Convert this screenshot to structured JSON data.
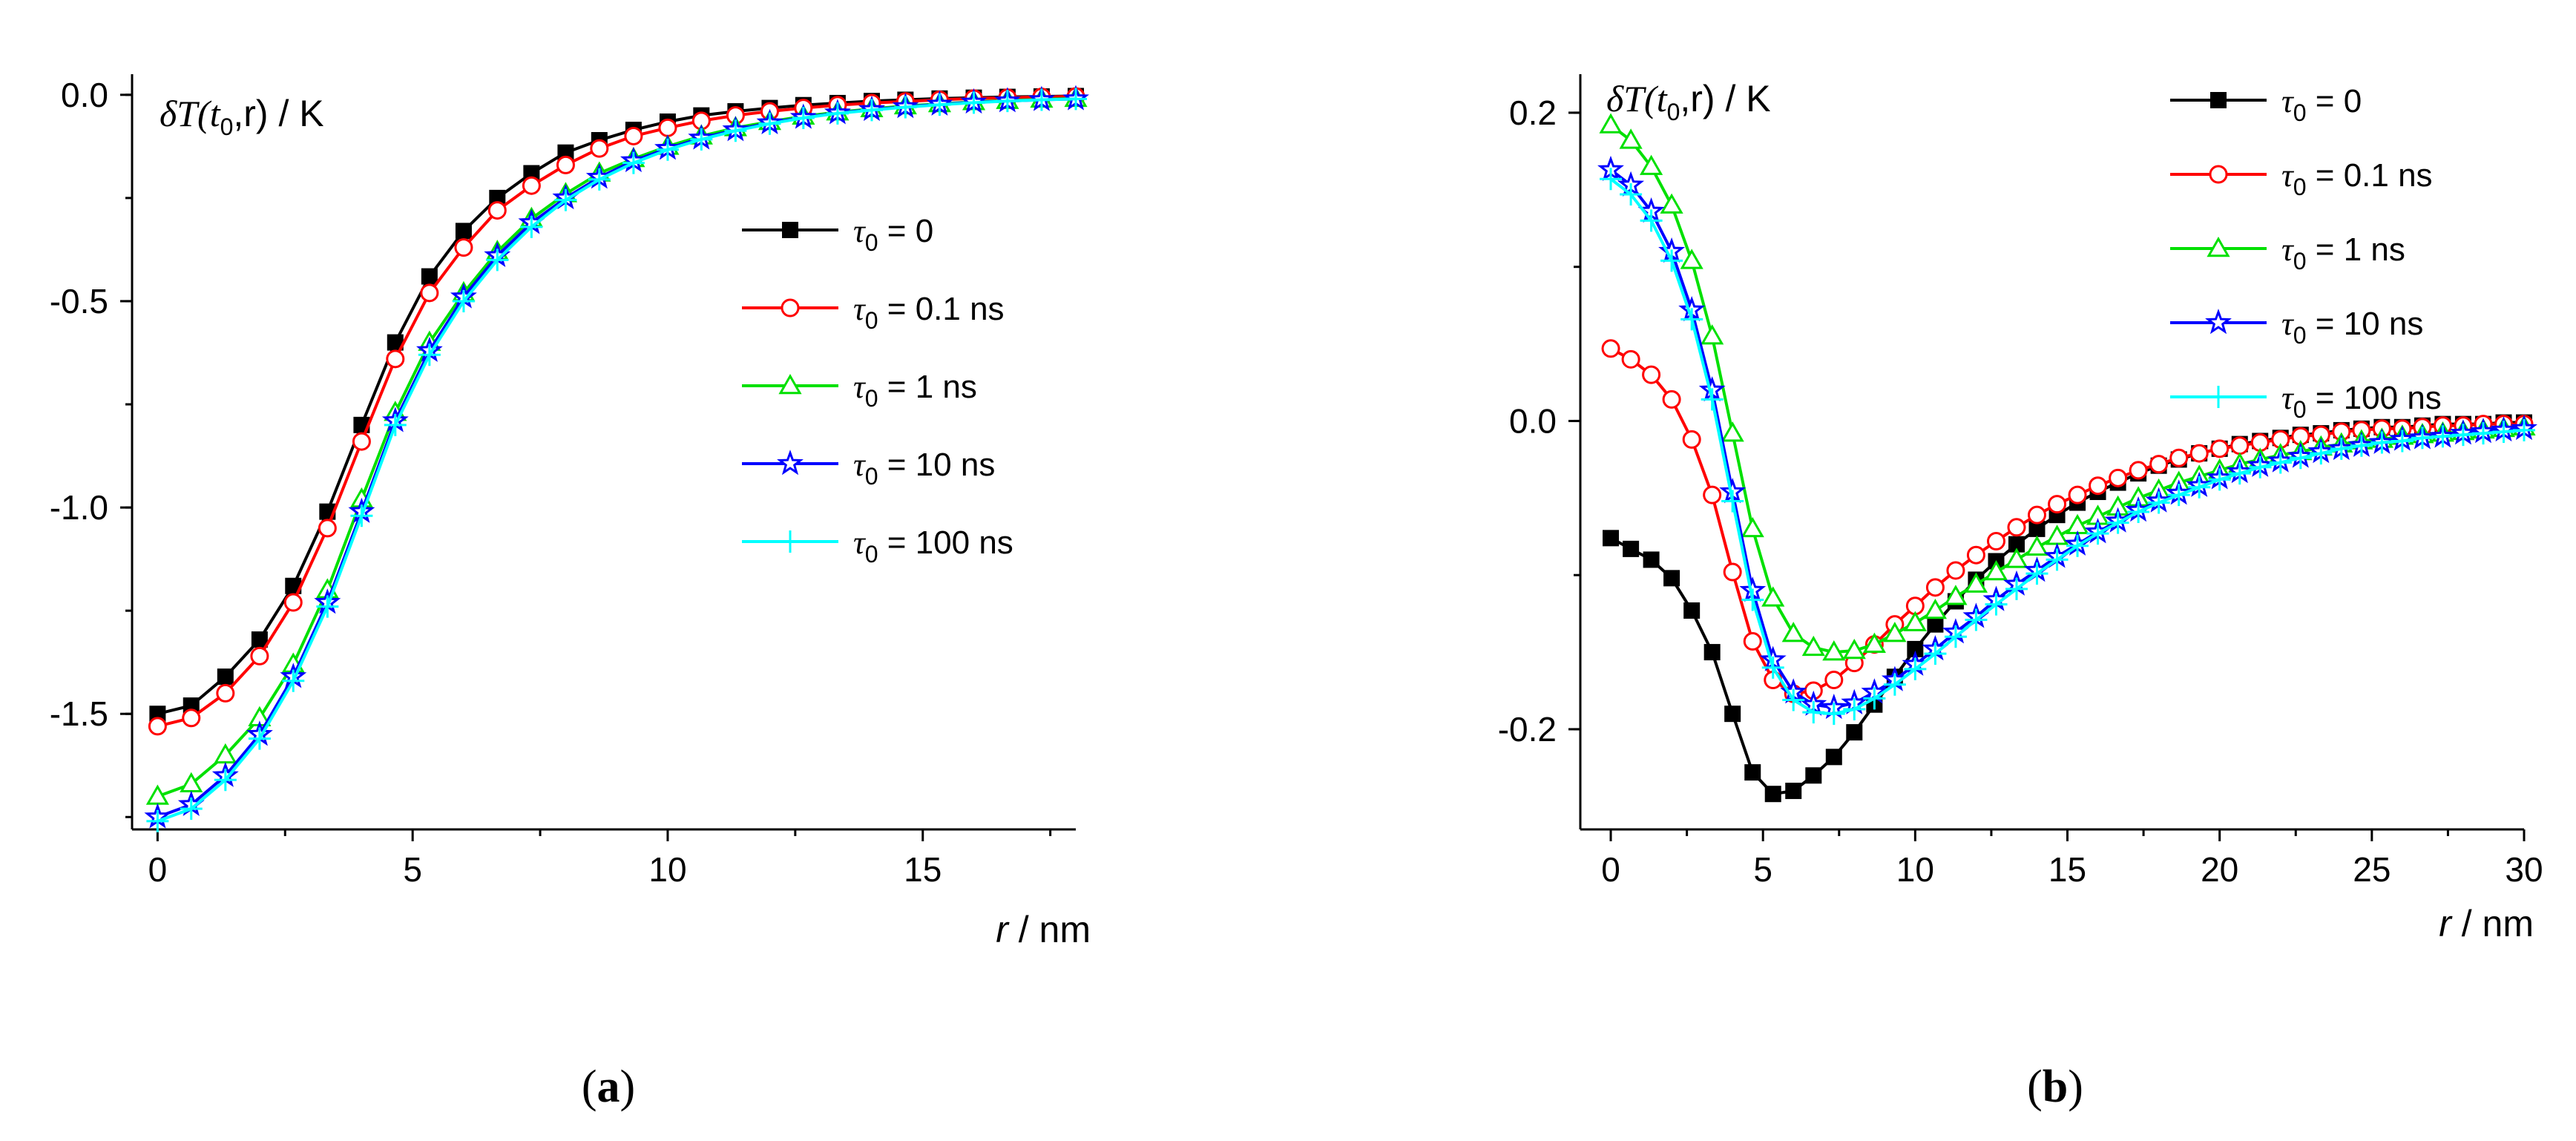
{
  "chart_data": [
    {
      "type": "line",
      "panel_label": "(a)",
      "ylabel": "δT(t0,r) / K",
      "ylabel_parts": {
        "main": "δT(t",
        "sub": "0",
        "rest": ",r) / K"
      },
      "xlabel": "r / nm",
      "xlabel_parts": {
        "italic": "r",
        "rest": " / nm"
      },
      "xlim": [
        -0.5,
        18
      ],
      "ylim": [
        -1.78,
        0.05
      ],
      "xticks": [
        0,
        5,
        10,
        15
      ],
      "xtick_labels": [
        "0",
        "5",
        "10",
        "15"
      ],
      "yticks": [
        0.0,
        -0.5,
        -1.0,
        -1.5
      ],
      "ytick_labels": [
        "0.0",
        "-0.5",
        "-1.0",
        "-1.5"
      ],
      "grid": false,
      "legend_position": "middle-right",
      "series": [
        {
          "name": "τ0 = 0",
          "legend_sym": "τ",
          "legend_sub": "0",
          "legend_rest": " = 0",
          "color": "#000000",
          "marker": "square-filled",
          "x": [
            0,
            0.66,
            1.33,
            2,
            2.66,
            3.33,
            4,
            4.66,
            5.33,
            6,
            6.66,
            7.33,
            8,
            8.66,
            9.33,
            10,
            10.66,
            11.33,
            12,
            12.66,
            13.33,
            14,
            14.66,
            15.33,
            16,
            16.66,
            17.33,
            18
          ],
          "y": [
            -1.5,
            -1.48,
            -1.41,
            -1.32,
            -1.19,
            -1.01,
            -0.8,
            -0.6,
            -0.44,
            -0.33,
            -0.25,
            -0.19,
            -0.14,
            -0.11,
            -0.085,
            -0.065,
            -0.05,
            -0.04,
            -0.032,
            -0.025,
            -0.02,
            -0.015,
            -0.012,
            -0.009,
            -0.007,
            -0.005,
            -0.004,
            -0.003
          ]
        },
        {
          "name": "τ0 = 0.1 ns",
          "legend_sym": "τ",
          "legend_sub": "0",
          "legend_rest": " = 0.1 ns",
          "color": "#ff0000",
          "marker": "circle-open",
          "x": [
            0,
            0.66,
            1.33,
            2,
            2.66,
            3.33,
            4,
            4.66,
            5.33,
            6,
            6.66,
            7.33,
            8,
            8.66,
            9.33,
            10,
            10.66,
            11.33,
            12,
            12.66,
            13.33,
            14,
            14.66,
            15.33,
            16,
            16.66,
            17.33,
            18
          ],
          "y": [
            -1.53,
            -1.51,
            -1.45,
            -1.36,
            -1.23,
            -1.05,
            -0.84,
            -0.64,
            -0.48,
            -0.37,
            -0.28,
            -0.22,
            -0.17,
            -0.13,
            -0.1,
            -0.08,
            -0.063,
            -0.05,
            -0.04,
            -0.032,
            -0.025,
            -0.02,
            -0.016,
            -0.012,
            -0.009,
            -0.007,
            -0.005,
            -0.004
          ]
        },
        {
          "name": "τ0 = 1 ns",
          "legend_sym": "τ",
          "legend_sub": "0",
          "legend_rest": " = 1 ns",
          "color": "#00e000",
          "marker": "triangle-open",
          "x": [
            0,
            0.66,
            1.33,
            2,
            2.66,
            3.33,
            4,
            4.66,
            5.33,
            6,
            6.66,
            7.33,
            8,
            8.66,
            9.33,
            10,
            10.66,
            11.33,
            12,
            12.66,
            13.33,
            14,
            14.66,
            15.33,
            16,
            16.66,
            17.33,
            18
          ],
          "y": [
            -1.7,
            -1.67,
            -1.6,
            -1.51,
            -1.38,
            -1.2,
            -0.98,
            -0.77,
            -0.6,
            -0.48,
            -0.38,
            -0.3,
            -0.24,
            -0.19,
            -0.155,
            -0.125,
            -0.1,
            -0.08,
            -0.065,
            -0.052,
            -0.042,
            -0.034,
            -0.027,
            -0.022,
            -0.017,
            -0.014,
            -0.011,
            -0.009
          ]
        },
        {
          "name": "τ0 = 10 ns",
          "legend_sym": "τ",
          "legend_sub": "0",
          "legend_rest": " = 10 ns",
          "color": "#0000ff",
          "marker": "star-open",
          "x": [
            0,
            0.66,
            1.33,
            2,
            2.66,
            3.33,
            4,
            4.66,
            5.33,
            6,
            6.66,
            7.33,
            8,
            8.66,
            9.33,
            10,
            10.66,
            11.33,
            12,
            12.66,
            13.33,
            14,
            14.66,
            15.33,
            16,
            16.66,
            17.33,
            18
          ],
          "y": [
            -1.75,
            -1.72,
            -1.65,
            -1.55,
            -1.41,
            -1.23,
            -1.01,
            -0.79,
            -0.62,
            -0.49,
            -0.39,
            -0.31,
            -0.25,
            -0.2,
            -0.16,
            -0.13,
            -0.105,
            -0.085,
            -0.068,
            -0.055,
            -0.044,
            -0.036,
            -0.029,
            -0.023,
            -0.018,
            -0.015,
            -0.012,
            -0.01
          ]
        },
        {
          "name": "τ0 = 100 ns",
          "legend_sym": "τ",
          "legend_sub": "0",
          "legend_rest": " = 100 ns",
          "color": "#00ffff",
          "marker": "plus",
          "x": [
            0,
            0.66,
            1.33,
            2,
            2.66,
            3.33,
            4,
            4.66,
            5.33,
            6,
            6.66,
            7.33,
            8,
            8.66,
            9.33,
            10,
            10.66,
            11.33,
            12,
            12.66,
            13.33,
            14,
            14.66,
            15.33,
            16,
            16.66,
            17.33,
            18
          ],
          "y": [
            -1.76,
            -1.73,
            -1.66,
            -1.56,
            -1.42,
            -1.24,
            -1.02,
            -0.8,
            -0.63,
            -0.5,
            -0.4,
            -0.32,
            -0.255,
            -0.205,
            -0.165,
            -0.133,
            -0.108,
            -0.087,
            -0.07,
            -0.056,
            -0.045,
            -0.037,
            -0.03,
            -0.024,
            -0.019,
            -0.015,
            -0.012,
            -0.01
          ]
        }
      ]
    },
    {
      "type": "line",
      "panel_label": "(b)",
      "ylabel": "δT(t0,r) / K",
      "ylabel_parts": {
        "main": "δT(t",
        "sub": "0",
        "rest": ",r) / K"
      },
      "xlabel": "r / nm",
      "xlabel_parts": {
        "italic": "r",
        "rest": " / nm"
      },
      "xlim": [
        -1,
        30
      ],
      "ylim": [
        -0.265,
        0.225
      ],
      "xticks": [
        0,
        5,
        10,
        15,
        20,
        25,
        30
      ],
      "xtick_labels": [
        "0",
        "5",
        "10",
        "15",
        "20",
        "25",
        "30"
      ],
      "yticks": [
        0.2,
        0.0,
        -0.2
      ],
      "ytick_labels": [
        "0.2",
        "0.0",
        "-0.2"
      ],
      "grid": false,
      "legend_position": "top-right",
      "series": [
        {
          "name": "τ0 = 0",
          "legend_sym": "τ",
          "legend_sub": "0",
          "legend_rest": " = 0",
          "color": "#000000",
          "marker": "square-filled",
          "x": [
            0,
            0.66,
            1.33,
            2,
            2.66,
            3.33,
            4,
            4.66,
            5.33,
            6,
            6.66,
            7.33,
            8,
            8.66,
            9.33,
            10,
            10.66,
            11.33,
            12,
            12.66,
            13.33,
            14,
            14.66,
            15.33,
            16,
            16.66,
            17.33,
            18,
            18.66,
            19.33,
            20,
            20.66,
            21.33,
            22,
            22.66,
            23.33,
            24,
            24.66,
            25.33,
            26,
            26.66,
            27.33,
            28,
            28.66,
            29.33,
            30
          ],
          "y": [
            -0.076,
            -0.083,
            -0.09,
            -0.102,
            -0.123,
            -0.15,
            -0.19,
            -0.228,
            -0.242,
            -0.24,
            -0.23,
            -0.218,
            -0.202,
            -0.184,
            -0.166,
            -0.148,
            -0.132,
            -0.117,
            -0.103,
            -0.091,
            -0.08,
            -0.07,
            -0.061,
            -0.053,
            -0.046,
            -0.04,
            -0.034,
            -0.029,
            -0.025,
            -0.021,
            -0.018,
            -0.015,
            -0.013,
            -0.011,
            -0.009,
            -0.008,
            -0.006,
            -0.005,
            -0.004,
            -0.004,
            -0.003,
            -0.002,
            -0.002,
            -0.002,
            -0.001,
            -0.001
          ]
        },
        {
          "name": "τ0 = 0.1 ns",
          "legend_sym": "τ",
          "legend_sub": "0",
          "legend_rest": " = 0.1 ns",
          "color": "#ff0000",
          "marker": "circle-open",
          "x": [
            0,
            0.66,
            1.33,
            2,
            2.66,
            3.33,
            4,
            4.66,
            5.33,
            6,
            6.66,
            7.33,
            8,
            8.66,
            9.33,
            10,
            10.66,
            11.33,
            12,
            12.66,
            13.33,
            14,
            14.66,
            15.33,
            16,
            16.66,
            17.33,
            18,
            18.66,
            19.33,
            20,
            20.66,
            21.33,
            22,
            22.66,
            23.33,
            24,
            24.66,
            25.33,
            26,
            26.66,
            27.33,
            28,
            28.66,
            29.33,
            30
          ],
          "y": [
            0.047,
            0.04,
            0.03,
            0.014,
            -0.012,
            -0.048,
            -0.098,
            -0.143,
            -0.168,
            -0.177,
            -0.175,
            -0.168,
            -0.157,
            -0.145,
            -0.132,
            -0.12,
            -0.108,
            -0.097,
            -0.087,
            -0.078,
            -0.069,
            -0.061,
            -0.054,
            -0.048,
            -0.042,
            -0.037,
            -0.032,
            -0.028,
            -0.024,
            -0.021,
            -0.018,
            -0.016,
            -0.014,
            -0.012,
            -0.01,
            -0.009,
            -0.007,
            -0.006,
            -0.005,
            -0.005,
            -0.004,
            -0.003,
            -0.003,
            -0.002,
            -0.002,
            -0.002
          ]
        },
        {
          "name": "τ0 = 1 ns",
          "legend_sym": "τ",
          "legend_sub": "0",
          "legend_rest": " = 1 ns",
          "color": "#00e000",
          "marker": "triangle-open",
          "x": [
            0,
            0.66,
            1.33,
            2,
            2.66,
            3.33,
            4,
            4.66,
            5.33,
            6,
            6.66,
            7.33,
            8,
            8.66,
            9.33,
            10,
            10.66,
            11.33,
            12,
            12.66,
            13.33,
            14,
            14.66,
            15.33,
            16,
            16.66,
            17.33,
            18,
            18.66,
            19.33,
            20,
            20.66,
            21.33,
            22,
            22.66,
            23.33,
            24,
            24.66,
            25.33,
            26,
            26.66,
            27.33,
            28,
            28.66,
            29.33,
            30
          ],
          "y": [
            0.192,
            0.182,
            0.165,
            0.14,
            0.104,
            0.055,
            -0.008,
            -0.07,
            -0.115,
            -0.138,
            -0.147,
            -0.15,
            -0.149,
            -0.145,
            -0.138,
            -0.131,
            -0.123,
            -0.114,
            -0.106,
            -0.098,
            -0.09,
            -0.082,
            -0.075,
            -0.068,
            -0.062,
            -0.056,
            -0.05,
            -0.045,
            -0.04,
            -0.036,
            -0.032,
            -0.028,
            -0.025,
            -0.022,
            -0.02,
            -0.017,
            -0.015,
            -0.013,
            -0.012,
            -0.01,
            -0.009,
            -0.008,
            -0.007,
            -0.006,
            -0.005,
            -0.004
          ]
        },
        {
          "name": "τ0 = 10 ns",
          "legend_sym": "τ",
          "legend_sub": "0",
          "legend_rest": " = 10 ns",
          "color": "#0000ff",
          "marker": "star-open",
          "x": [
            0,
            0.66,
            1.33,
            2,
            2.66,
            3.33,
            4,
            4.66,
            5.33,
            6,
            6.66,
            7.33,
            8,
            8.66,
            9.33,
            10,
            10.66,
            11.33,
            12,
            12.66,
            13.33,
            14,
            14.66,
            15.33,
            16,
            16.66,
            17.33,
            18,
            18.66,
            19.33,
            20,
            20.66,
            21.33,
            22,
            22.66,
            23.33,
            24,
            24.66,
            25.33,
            26,
            26.66,
            27.33,
            28,
            28.66,
            29.33,
            30
          ],
          "y": [
            0.163,
            0.153,
            0.136,
            0.11,
            0.072,
            0.02,
            -0.046,
            -0.11,
            -0.155,
            -0.176,
            -0.184,
            -0.186,
            -0.183,
            -0.176,
            -0.168,
            -0.158,
            -0.148,
            -0.137,
            -0.127,
            -0.116,
            -0.106,
            -0.097,
            -0.088,
            -0.08,
            -0.072,
            -0.065,
            -0.058,
            -0.052,
            -0.047,
            -0.042,
            -0.037,
            -0.033,
            -0.029,
            -0.026,
            -0.023,
            -0.02,
            -0.018,
            -0.016,
            -0.014,
            -0.012,
            -0.011,
            -0.01,
            -0.008,
            -0.007,
            -0.006,
            -0.005
          ]
        },
        {
          "name": "τ0 = 100 ns",
          "legend_sym": "τ",
          "legend_sub": "0",
          "legend_rest": " = 100 ns",
          "color": "#00ffff",
          "marker": "plus",
          "x": [
            0,
            0.66,
            1.33,
            2,
            2.66,
            3.33,
            4,
            4.66,
            5.33,
            6,
            6.66,
            7.33,
            8,
            8.66,
            9.33,
            10,
            10.66,
            11.33,
            12,
            12.66,
            13.33,
            14,
            14.66,
            15.33,
            16,
            16.66,
            17.33,
            18,
            18.66,
            19.33,
            20,
            20.66,
            21.33,
            22,
            22.66,
            23.33,
            24,
            24.66,
            25.33,
            26,
            26.66,
            27.33,
            28,
            28.66,
            29.33,
            30
          ],
          "y": [
            0.157,
            0.147,
            0.13,
            0.104,
            0.066,
            0.014,
            -0.052,
            -0.116,
            -0.16,
            -0.181,
            -0.189,
            -0.19,
            -0.187,
            -0.18,
            -0.171,
            -0.161,
            -0.151,
            -0.14,
            -0.129,
            -0.119,
            -0.109,
            -0.099,
            -0.09,
            -0.081,
            -0.073,
            -0.066,
            -0.059,
            -0.053,
            -0.048,
            -0.043,
            -0.038,
            -0.034,
            -0.03,
            -0.027,
            -0.024,
            -0.021,
            -0.018,
            -0.016,
            -0.014,
            -0.013,
            -0.011,
            -0.01,
            -0.009,
            -0.008,
            -0.007,
            -0.006
          ]
        }
      ]
    }
  ]
}
